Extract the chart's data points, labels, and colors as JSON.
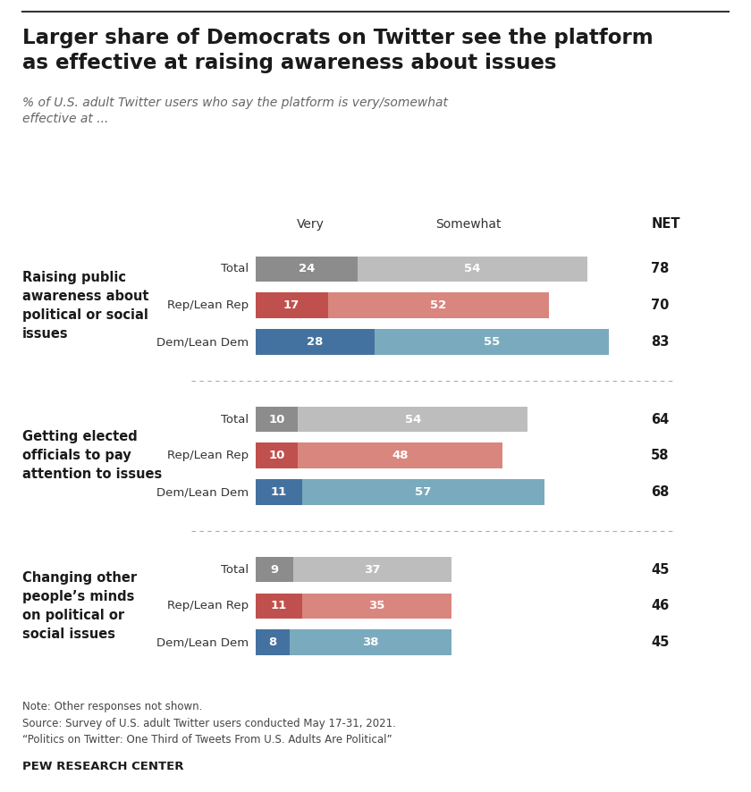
{
  "title": "Larger share of Democrats on Twitter see the platform\nas effective at raising awareness about issues",
  "subtitle": "% of U.S. adult Twitter users who say the platform is very/somewhat\neffective at ...",
  "categories": [
    "Raising public\nawareness about\npolitical or social\nissues",
    "Getting elected\nofficials to pay\nattention to issues",
    "Changing other\npeople’s minds\non political or\nsocial issues"
  ],
  "row_labels": [
    "Total",
    "Rep/Lean Rep",
    "Dem/Lean Dem"
  ],
  "very_values": [
    [
      24,
      17,
      28
    ],
    [
      10,
      10,
      11
    ],
    [
      9,
      11,
      8
    ]
  ],
  "somewhat_values": [
    [
      54,
      52,
      55
    ],
    [
      54,
      48,
      57
    ],
    [
      37,
      35,
      38
    ]
  ],
  "net_values": [
    [
      78,
      70,
      83
    ],
    [
      64,
      58,
      68
    ],
    [
      45,
      46,
      45
    ]
  ],
  "colors": {
    "total_very": "#8c8c8c",
    "total_somewhat": "#bdbdbd",
    "rep_very": "#c0504d",
    "rep_somewhat": "#d9867f",
    "dem_very": "#4472a0",
    "dem_somewhat": "#7aaabe"
  },
  "note": "Note: Other responses not shown.\nSource: Survey of U.S. adult Twitter users conducted May 17-31, 2021.\n“Politics on Twitter: One Third of Tweets From U.S. Adults Are Political”",
  "footer": "PEW RESEARCH CENTER",
  "background_color": "#ffffff",
  "max_val": 90
}
